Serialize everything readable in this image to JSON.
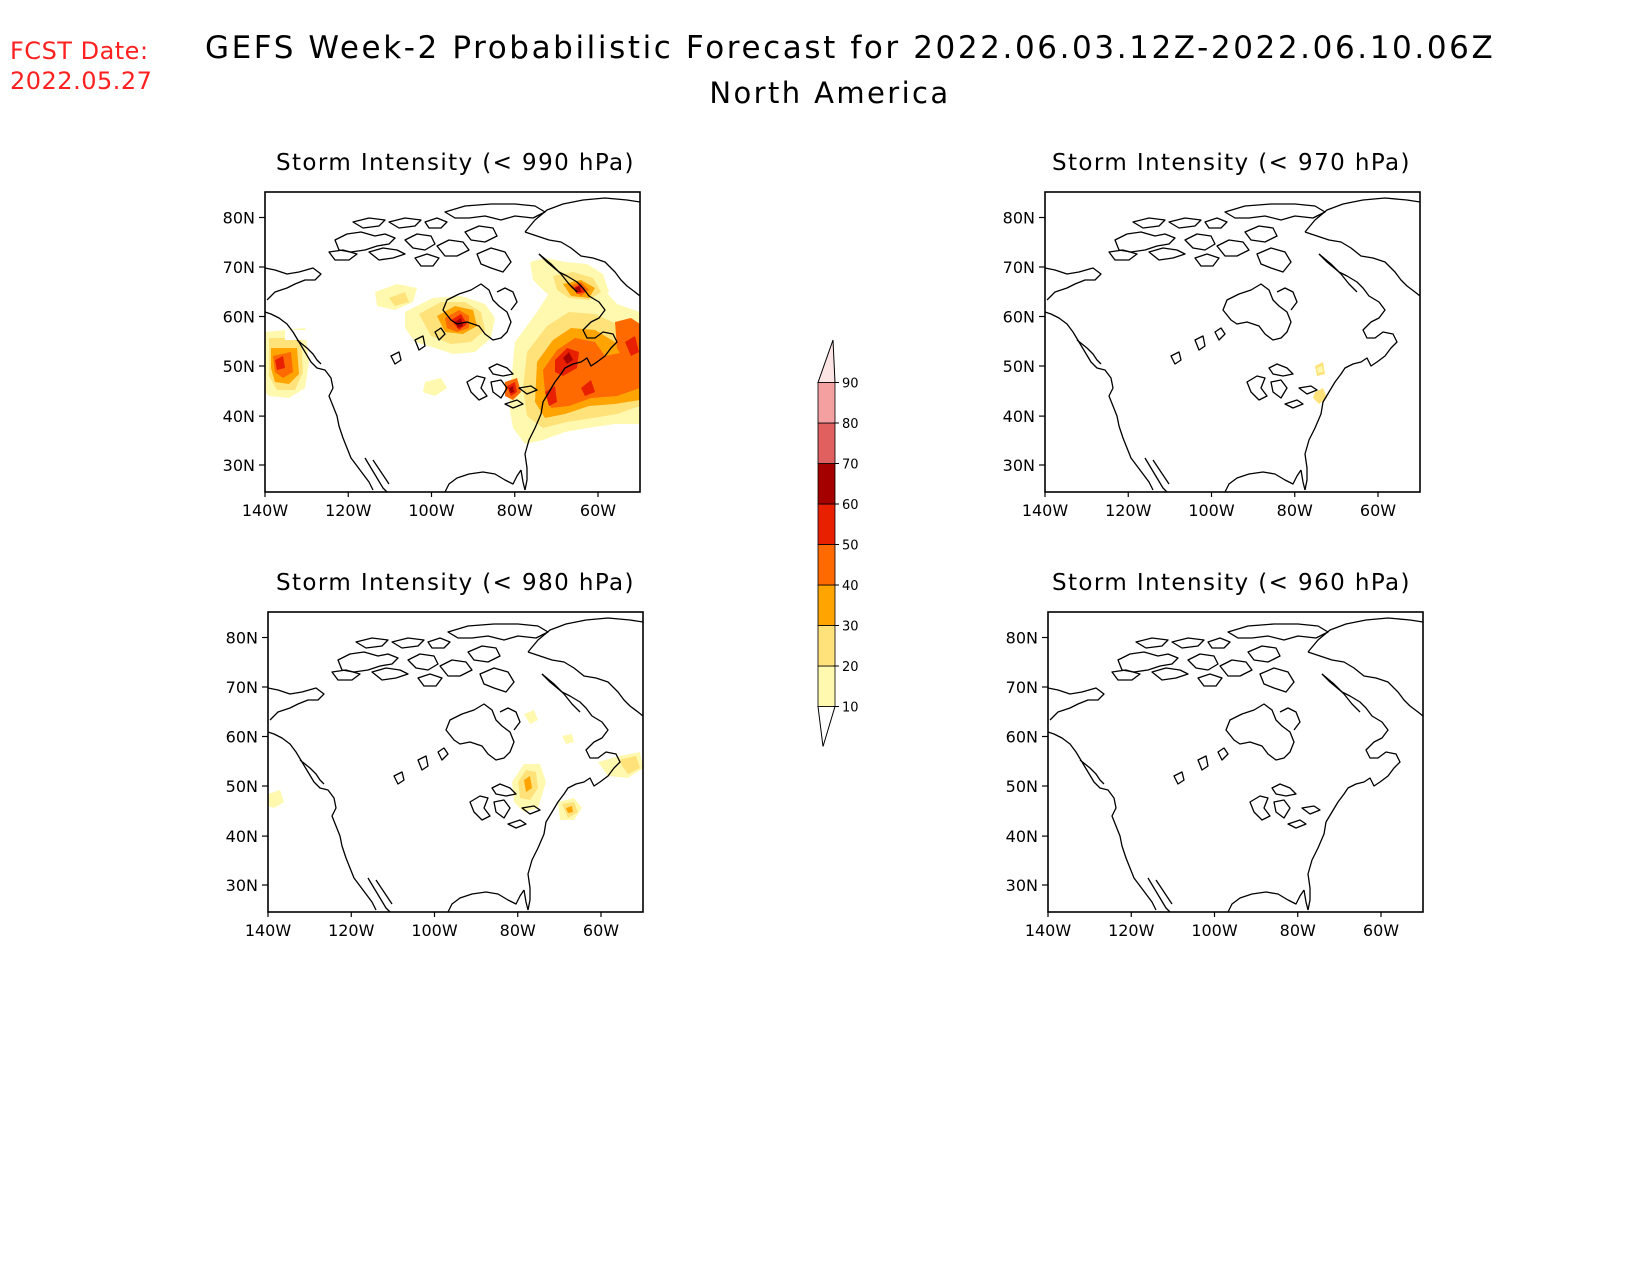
{
  "header": {
    "fcst_label": "FCST Date:",
    "fcst_date": "2022.05.27",
    "title": "GEFS Week-2 Probabilistic Forecast for 2022.06.03.12Z-2022.06.10.06Z",
    "subtitle": "North America"
  },
  "panels": [
    {
      "title": "Storm Intensity (< 990 hPa)"
    },
    {
      "title": "Storm Intensity (< 970 hPa)"
    },
    {
      "title": "Storm Intensity (< 980 hPa)"
    },
    {
      "title": "Storm Intensity (< 960 hPa)"
    }
  ],
  "axes": {
    "lat_ticks": [
      "80N",
      "70N",
      "60N",
      "50N",
      "40N",
      "30N"
    ],
    "lon_ticks": [
      "140W",
      "120W",
      "100W",
      "80W",
      "60W"
    ]
  },
  "colorbar": {
    "levels": [
      "10",
      "20",
      "30",
      "40",
      "50",
      "60",
      "70",
      "80",
      "90"
    ],
    "colors": [
      "#fff9b0",
      "#ffe27a",
      "#ffa400",
      "#ff6a00",
      "#e82000",
      "#a40000",
      "#e06060",
      "#f4a0a0",
      "#fde4e4"
    ]
  }
}
